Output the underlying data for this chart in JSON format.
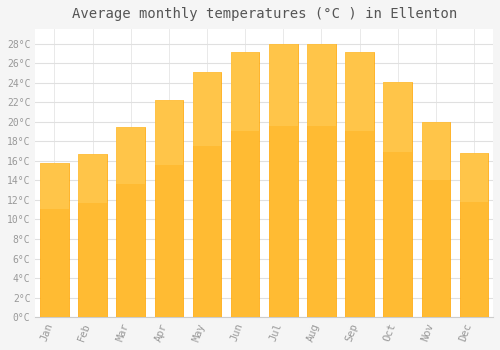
{
  "title": "Average monthly temperatures (°C ) in Ellenton",
  "months": [
    "Jan",
    "Feb",
    "Mar",
    "Apr",
    "May",
    "Jun",
    "Jul",
    "Aug",
    "Sep",
    "Oct",
    "Nov",
    "Dec"
  ],
  "values": [
    15.8,
    16.7,
    19.5,
    22.2,
    25.1,
    27.2,
    28.0,
    28.0,
    27.2,
    24.1,
    20.0,
    16.8
  ],
  "bar_color_top": "#FFB300",
  "bar_color_bottom": "#FFA000",
  "bar_color_face": "#FFBB33",
  "bar_color_edge": "#FFA500",
  "background_color": "#F5F5F5",
  "plot_bg_color": "#FFFFFF",
  "grid_color": "#E0E0E0",
  "title_fontsize": 10,
  "tick_label_color": "#999999",
  "ylim": [
    0,
    29.5
  ],
  "yticks": [
    0,
    2,
    4,
    6,
    8,
    10,
    12,
    14,
    16,
    18,
    20,
    22,
    24,
    26,
    28
  ],
  "ylabel_suffix": "°C",
  "title_font_family": "monospace"
}
